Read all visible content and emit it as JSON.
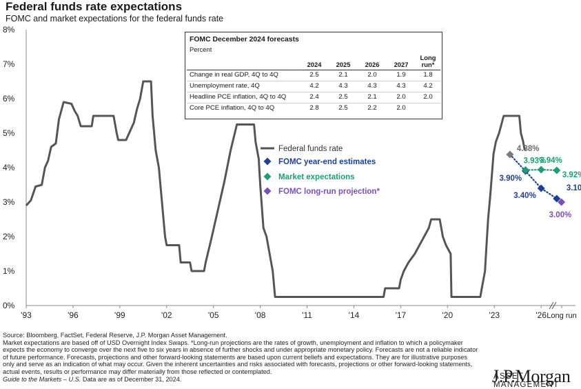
{
  "header": {
    "title": "Federal funds rate expectations",
    "subtitle": "FOMC and market expectations for the federal funds rate"
  },
  "chart_data": {
    "type": "line",
    "ylim": [
      0,
      8
    ],
    "y_ticks": [
      "0%",
      "1%",
      "2%",
      "3%",
      "4%",
      "5%",
      "6%",
      "7%",
      "8%"
    ],
    "x_ticks": [
      "'93",
      "'96",
      "'99",
      "'02",
      "'05",
      "'08",
      "'11",
      "'14",
      "'17",
      "'20",
      "'23",
      "'26",
      "Long run"
    ],
    "grid": false,
    "series": [
      {
        "name": "Federal funds rate",
        "color": "#555555",
        "points": [
          [
            1993.0,
            2.9
          ],
          [
            1993.3,
            3.05
          ],
          [
            1993.6,
            3.45
          ],
          [
            1994.0,
            3.5
          ],
          [
            1994.2,
            4.0
          ],
          [
            1994.4,
            4.2
          ],
          [
            1994.6,
            4.6
          ],
          [
            1994.9,
            4.7
          ],
          [
            1995.1,
            5.4
          ],
          [
            1995.4,
            5.9
          ],
          [
            1995.9,
            5.85
          ],
          [
            1996.1,
            5.65
          ],
          [
            1996.3,
            5.5
          ],
          [
            1996.5,
            5.2
          ],
          [
            1997.2,
            5.2
          ],
          [
            1997.3,
            5.5
          ],
          [
            1998.6,
            5.5
          ],
          [
            1998.8,
            5.0
          ],
          [
            1998.9,
            4.8
          ],
          [
            1999.4,
            4.8
          ],
          [
            1999.6,
            5.0
          ],
          [
            1999.9,
            5.3
          ],
          [
            2000.1,
            5.7
          ],
          [
            2000.3,
            6.0
          ],
          [
            2000.5,
            6.5
          ],
          [
            2001.0,
            6.5
          ],
          [
            2001.1,
            5.5
          ],
          [
            2001.3,
            4.5
          ],
          [
            2001.5,
            4.0
          ],
          [
            2001.7,
            3.0
          ],
          [
            2001.9,
            2.0
          ],
          [
            2002.0,
            1.75
          ],
          [
            2002.8,
            1.75
          ],
          [
            2002.9,
            1.25
          ],
          [
            2003.5,
            1.25
          ],
          [
            2003.6,
            1.0
          ],
          [
            2004.4,
            1.0
          ],
          [
            2004.5,
            1.25
          ],
          [
            2004.9,
            2.0
          ],
          [
            2005.3,
            2.8
          ],
          [
            2005.7,
            3.6
          ],
          [
            2006.1,
            4.5
          ],
          [
            2006.5,
            5.25
          ],
          [
            2007.6,
            5.25
          ],
          [
            2007.7,
            4.75
          ],
          [
            2007.9,
            4.25
          ],
          [
            2008.0,
            3.5
          ],
          [
            2008.2,
            2.25
          ],
          [
            2008.4,
            2.0
          ],
          [
            2008.8,
            1.0
          ],
          [
            2008.95,
            0.25
          ],
          [
            2015.9,
            0.25
          ],
          [
            2016.0,
            0.5
          ],
          [
            2016.9,
            0.5
          ],
          [
            2017.0,
            0.75
          ],
          [
            2017.2,
            1.0
          ],
          [
            2017.5,
            1.25
          ],
          [
            2017.9,
            1.5
          ],
          [
            2018.2,
            1.75
          ],
          [
            2018.5,
            2.0
          ],
          [
            2018.8,
            2.25
          ],
          [
            2018.95,
            2.5
          ],
          [
            2019.5,
            2.5
          ],
          [
            2019.6,
            2.25
          ],
          [
            2019.7,
            2.0
          ],
          [
            2019.9,
            1.75
          ],
          [
            2020.2,
            1.5
          ],
          [
            2020.25,
            0.25
          ],
          [
            2022.1,
            0.25
          ],
          [
            2022.2,
            0.5
          ],
          [
            2022.4,
            1.0
          ],
          [
            2022.5,
            1.75
          ],
          [
            2022.6,
            2.5
          ],
          [
            2022.75,
            3.25
          ],
          [
            2022.95,
            4.4
          ],
          [
            2023.1,
            4.75
          ],
          [
            2023.3,
            5.0
          ],
          [
            2023.45,
            5.25
          ],
          [
            2023.6,
            5.5
          ],
          [
            2024.6,
            5.5
          ],
          [
            2024.7,
            5.0
          ],
          [
            2024.85,
            4.75
          ],
          [
            2024.95,
            4.5
          ]
        ]
      },
      {
        "name": "FOMC year-end estimates",
        "color": "#1f3f8f",
        "points": [
          [
            "'24",
            4.38
          ],
          [
            "'25",
            3.9
          ],
          [
            "'26",
            3.4
          ],
          [
            "'27",
            3.1
          ]
        ],
        "labels": [
          "4.38%",
          "3.90%",
          "3.40%",
          "3.10%"
        ]
      },
      {
        "name": "Market expectations",
        "color": "#1f9d74",
        "points": [
          [
            "'25",
            3.93
          ],
          [
            "'26",
            3.94
          ],
          [
            "'27",
            3.92
          ]
        ],
        "labels": [
          "3.93%",
          "3.94%",
          "3.92%"
        ]
      },
      {
        "name": "FOMC long-run projection*",
        "color": "#7a4fb8",
        "points": [
          [
            "Long run",
            3.0
          ]
        ],
        "labels": [
          "3.00%"
        ]
      }
    ],
    "legend": [
      {
        "name": "Federal funds rate",
        "marker": "line",
        "color": "#555555"
      },
      {
        "name": "FOMC year-end estimates",
        "marker": "diamond",
        "color": "#1f3f8f"
      },
      {
        "name": "Market expectations",
        "marker": "diamond",
        "color": "#1f9d74"
      },
      {
        "name": "FOMC long-run projection*",
        "marker": "diamond",
        "color": "#7a4fb8"
      }
    ]
  },
  "forecast_table": {
    "title": "FOMC December 2024 forecasts",
    "unit": "Percent",
    "columns": [
      "2024",
      "2025",
      "2026",
      "2027",
      "Long run*"
    ],
    "rows": [
      {
        "label": "Change in real GDP, 4Q to 4Q",
        "values": [
          "2.5",
          "2.1",
          "2.0",
          "1.9",
          "1.8"
        ]
      },
      {
        "label": "Unemployment rate, 4Q",
        "values": [
          "4.2",
          "4.3",
          "4.3",
          "4.3",
          "4.2"
        ]
      },
      {
        "label": "Headline PCE inflation, 4Q to 4Q",
        "values": [
          "2.4",
          "2.5",
          "2.1",
          "2.0",
          "2.0"
        ]
      },
      {
        "label": "Core PCE inflation, 4Q to 4Q",
        "values": [
          "2.8",
          "2.5",
          "2.2",
          "2.0",
          ""
        ]
      }
    ]
  },
  "footer": {
    "line1": "Source: Bloomberg, FactSet, Federal Reserve, J.P. Morgan Asset Management.",
    "line2": "Market expectations are based off of USD Overnight Index Swaps. *Long-run projections are the rates of growth, unemployment and inflation to which a policymaker expects the economy to converge over the next five to six years in absence of further shocks and under appropriate monetary policy. Forecasts are not a reliable indicator of future performance. Forecasts, projections and other forward-looking statements are based upon current beliefs and expectations. They are for illustrative purposes only and serve as an indication of what may occur. Given the inherent uncertainties and risks associated with forecasts, projections or other forward-looking statements, actual events, results or performance may differ materially from those reflected or contemplated.",
    "line3_italic": "Guide to the Markets – U.S.",
    "line3_rest": " Data are as of December 31, 2024."
  },
  "logo": {
    "main": "J.P.Morgan",
    "sub": "ASSET MANAGEMENT"
  }
}
